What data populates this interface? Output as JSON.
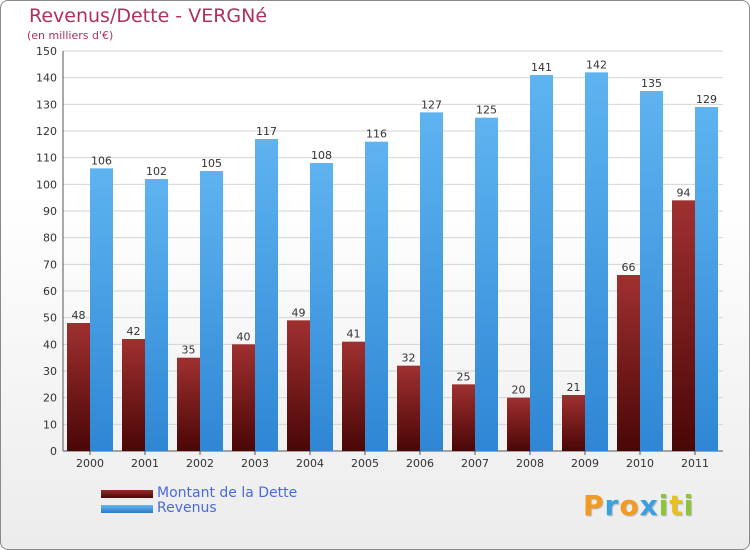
{
  "header": {
    "title": "Revenus/Dette - VERGNé",
    "subtitle": "(en milliers d'€)"
  },
  "chart_data": {
    "type": "bar",
    "categories": [
      "2000",
      "2001",
      "2002",
      "2003",
      "2004",
      "2005",
      "2006",
      "2007",
      "2008",
      "2009",
      "2010",
      "2011"
    ],
    "series": [
      {
        "name": "Montant de la Dette",
        "color": "#7a1a1a",
        "values": [
          48,
          42,
          35,
          40,
          49,
          41,
          32,
          25,
          20,
          21,
          66,
          94
        ]
      },
      {
        "name": "Revenus",
        "color": "#4a9fe0",
        "values": [
          106,
          102,
          105,
          117,
          108,
          116,
          127,
          125,
          141,
          142,
          135,
          129
        ]
      }
    ],
    "ylim": [
      0,
      150
    ],
    "yticks": [
      0,
      10,
      20,
      30,
      40,
      50,
      60,
      70,
      80,
      90,
      100,
      110,
      120,
      130,
      140,
      150
    ],
    "grid": true,
    "legend_position": "bottom-left"
  },
  "logo": {
    "letters": [
      {
        "char": "P",
        "color": "#f39a1f"
      },
      {
        "char": "r",
        "color": "#3aa0e0"
      },
      {
        "char": "o",
        "color": "#f39a1f"
      },
      {
        "char": "x",
        "color": "#3aa0e0"
      },
      {
        "char": "i",
        "color": "#8cc43a"
      },
      {
        "char": "t",
        "color": "#e8c020"
      },
      {
        "char": "i",
        "color": "#8cc43a"
      }
    ]
  }
}
